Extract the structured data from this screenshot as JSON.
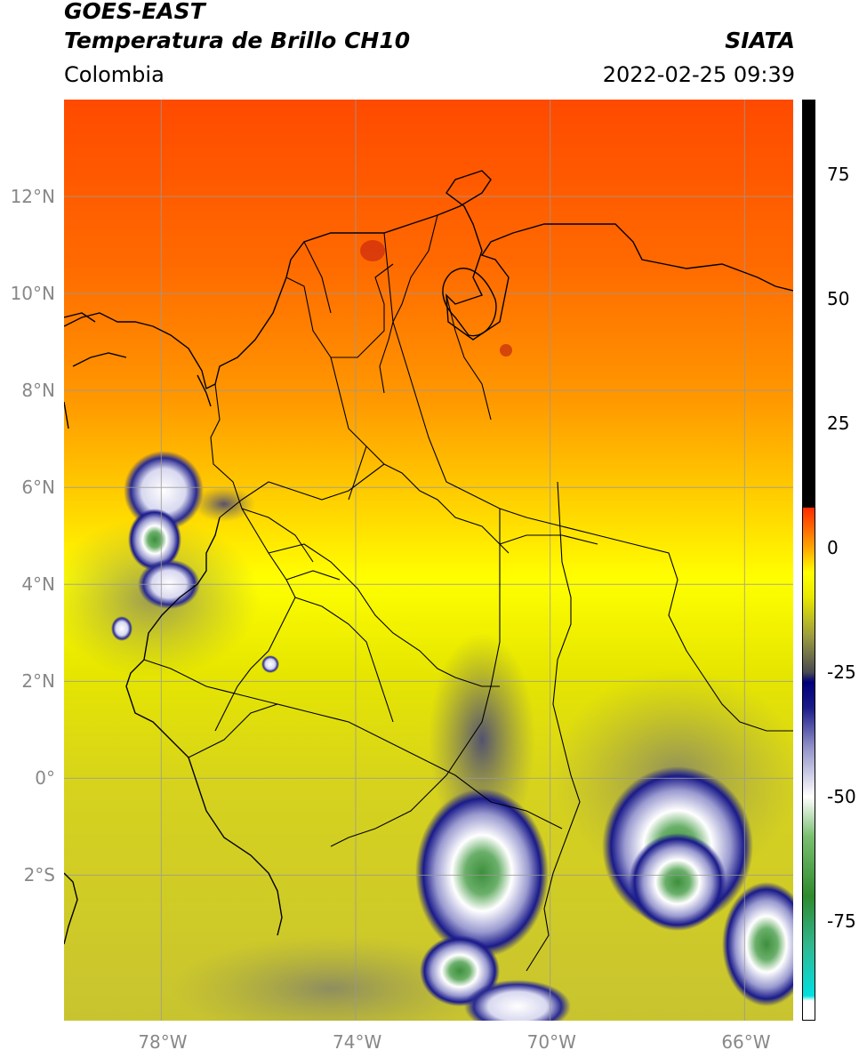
{
  "header": {
    "satellite": "GOES-EAST",
    "product": "Temperatura de Brillo CH10",
    "agency": "SIATA",
    "region": "Colombia",
    "timestamp": "2022-02-25 09:39"
  },
  "map": {
    "lat_labels": [
      "12°N",
      "10°N",
      "8°N",
      "6°N",
      "4°N",
      "2°N",
      "0°",
      "2°S"
    ],
    "lat_values": [
      12,
      10,
      8,
      6,
      4,
      2,
      0,
      -2
    ],
    "lon_labels": [
      "78°W",
      "74°W",
      "70°W",
      "66°W"
    ],
    "lon_values": [
      -78,
      -74,
      -70,
      -66
    ],
    "extent": {
      "lon_min": -80,
      "lon_max": -65,
      "lat_min": -5,
      "lat_max": 14
    },
    "grid_color": "#999999"
  },
  "colorbar": {
    "tick_labels": [
      "75",
      "50",
      "25",
      "0",
      "-25",
      "-50",
      "-75"
    ],
    "tick_values": [
      75,
      50,
      25,
      0,
      -25,
      -50,
      -75
    ],
    "range": [
      -95,
      90
    ],
    "stops": [
      {
        "v": -95,
        "c": "#ffffff"
      },
      {
        "v": -91,
        "c": "#ffffff"
      },
      {
        "v": -90,
        "c": "#00e0e0"
      },
      {
        "v": -80,
        "c": "#30b890"
      },
      {
        "v": -70,
        "c": "#2e8b2e"
      },
      {
        "v": -58,
        "c": "#7abf70"
      },
      {
        "v": -50,
        "c": "#ffffff"
      },
      {
        "v": -40,
        "c": "#9090c8"
      },
      {
        "v": -32,
        "c": "#1a1a8a"
      },
      {
        "v": -27,
        "c": "#00007a"
      },
      {
        "v": -25,
        "c": "#4a4a50"
      },
      {
        "v": -18,
        "c": "#9a9a40"
      },
      {
        "v": -10,
        "c": "#e8e800"
      },
      {
        "v": -5,
        "c": "#ffff00"
      },
      {
        "v": 0,
        "c": "#ffa500"
      },
      {
        "v": 8,
        "c": "#ff2a00"
      },
      {
        "v": 8.1,
        "c": "#000000"
      },
      {
        "v": 90,
        "c": "#000000"
      }
    ]
  }
}
